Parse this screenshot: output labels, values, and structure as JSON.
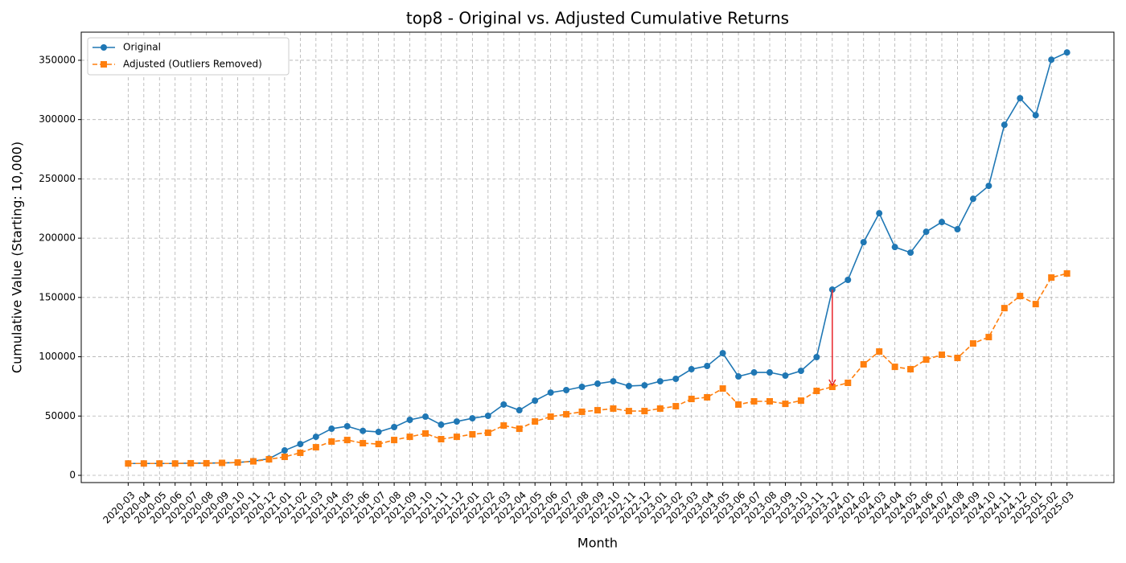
{
  "chart_data": {
    "type": "line",
    "title": "top8 - Original vs. Adjusted Cumulative Returns",
    "xlabel": "Month",
    "ylabel": "Cumulative Value (Starting: 10,000)",
    "categories": [
      "2020-03",
      "2020-04",
      "2020-05",
      "2020-06",
      "2020-07",
      "2020-08",
      "2020-09",
      "2020-10",
      "2020-11",
      "2020-12",
      "2021-01",
      "2021-02",
      "2021-03",
      "2021-04",
      "2021-05",
      "2021-06",
      "2021-07",
      "2021-08",
      "2021-09",
      "2021-10",
      "2021-11",
      "2021-12",
      "2022-01",
      "2022-02",
      "2022-03",
      "2022-04",
      "2022-05",
      "2022-06",
      "2022-07",
      "2022-08",
      "2022-09",
      "2022-10",
      "2022-11",
      "2022-12",
      "2023-01",
      "2023-02",
      "2023-03",
      "2023-04",
      "2023-05",
      "2023-06",
      "2023-07",
      "2023-08",
      "2023-09",
      "2023-10",
      "2023-11",
      "2023-12",
      "2024-01",
      "2024-02",
      "2024-03",
      "2024-04",
      "2024-05",
      "2024-06",
      "2024-07",
      "2024-08",
      "2024-09",
      "2024-10",
      "2024-11",
      "2024-12",
      "2025-01",
      "2025-02",
      "2025-03"
    ],
    "series": [
      {
        "name": "Original",
        "color": "#1f77b4",
        "marker": "circle",
        "linestyle": "solid",
        "values": [
          10000,
          10000,
          10000,
          10000,
          10300,
          10300,
          10500,
          10800,
          12000,
          14000,
          21000,
          26400,
          32500,
          39300,
          41400,
          37500,
          36600,
          40700,
          46800,
          49500,
          42700,
          45400,
          48100,
          50200,
          59700,
          54900,
          63000,
          69800,
          71900,
          74600,
          77300,
          79300,
          75300,
          75900,
          79300,
          81400,
          89500,
          92200,
          103000,
          83400,
          86800,
          86800,
          84100,
          88100,
          99700,
          156600,
          164800,
          196600,
          221000,
          192500,
          187800,
          205400,
          213600,
          207500,
          233200,
          244100,
          295600,
          318000,
          303700,
          350500,
          356600
        ]
      },
      {
        "name": "Adjusted (Outliers Removed)",
        "color": "#ff7f0e",
        "marker": "square",
        "linestyle": "dashed",
        "values": [
          10000,
          10000,
          10000,
          10000,
          10200,
          10200,
          10500,
          10800,
          11800,
          13500,
          15600,
          19000,
          23700,
          28500,
          29800,
          27100,
          26400,
          29800,
          32500,
          35300,
          30500,
          32500,
          34600,
          35900,
          42000,
          39300,
          45400,
          49500,
          51500,
          53600,
          54900,
          56300,
          54200,
          54200,
          56300,
          58300,
          64400,
          65800,
          73200,
          59700,
          62400,
          62400,
          60300,
          63000,
          71200,
          74600,
          78000,
          93600,
          104400,
          91500,
          89500,
          97600,
          101700,
          99000,
          111200,
          116600,
          141000,
          151200,
          144400,
          166800,
          170200
        ]
      }
    ],
    "ylim": [
      -6100,
      373700
    ],
    "yticks": [
      0,
      50000,
      100000,
      150000,
      200000,
      250000,
      300000,
      350000
    ],
    "grid": true,
    "legend": "upper left"
  }
}
